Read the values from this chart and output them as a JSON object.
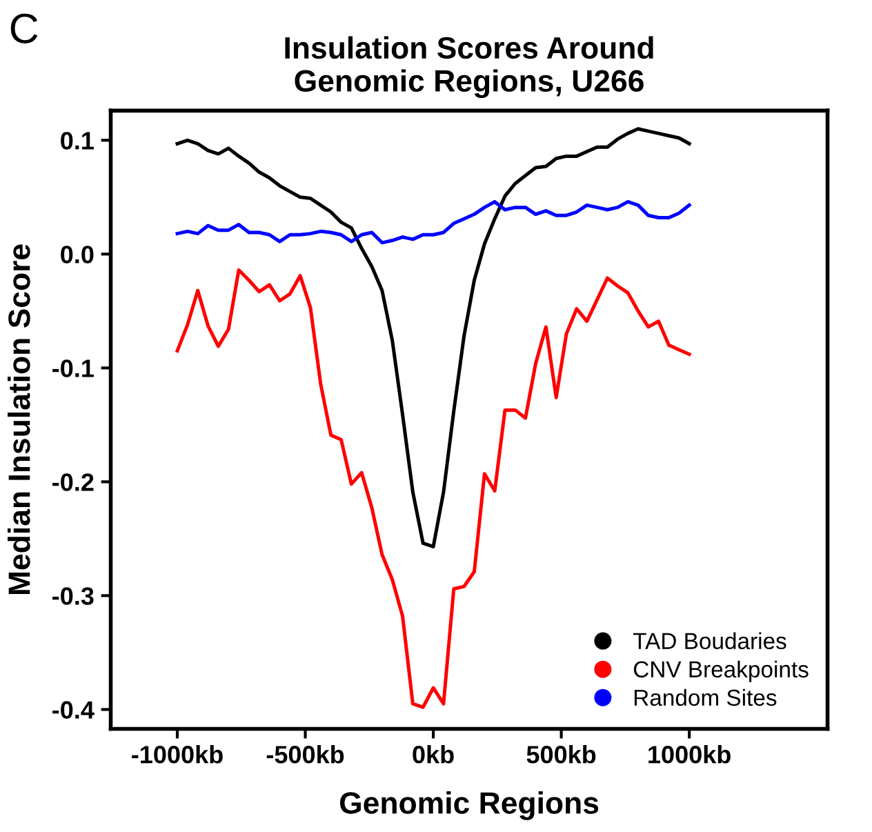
{
  "chart_data": {
    "type": "line",
    "title": "Insulation Scores Around\nGenomic Regions, U266",
    "xlabel": "Genomic Regions",
    "ylabel": "Median Insulation Score",
    "annotations": [
      "C"
    ],
    "x": [
      -1000,
      -960,
      -920,
      -880,
      -840,
      -800,
      -760,
      -720,
      -680,
      -640,
      -600,
      -560,
      -520,
      -480,
      -440,
      -400,
      -360,
      -320,
      -280,
      -240,
      -200,
      -160,
      -120,
      -80,
      -40,
      0,
      40,
      80,
      120,
      160,
      200,
      240,
      280,
      320,
      360,
      400,
      440,
      480,
      520,
      560,
      600,
      640,
      680,
      720,
      760,
      800,
      840,
      880,
      920,
      960,
      1000
    ],
    "series": [
      {
        "name": "TAD Boudaries",
        "color": "#000000",
        "values": [
          0.097,
          0.1,
          0.097,
          0.091,
          0.088,
          0.093,
          0.086,
          0.08,
          0.072,
          0.067,
          0.06,
          0.055,
          0.05,
          0.049,
          0.043,
          0.037,
          0.028,
          0.023,
          0.005,
          -0.011,
          -0.032,
          -0.076,
          -0.141,
          -0.209,
          -0.254,
          -0.257,
          -0.209,
          -0.138,
          -0.072,
          -0.023,
          0.009,
          0.031,
          0.051,
          0.062,
          0.069,
          0.076,
          0.077,
          0.084,
          0.086,
          0.086,
          0.09,
          0.094,
          0.094,
          0.101,
          0.106,
          0.11,
          0.108,
          0.106,
          0.104,
          0.102,
          0.097
        ]
      },
      {
        "name": "CNV Breakpoints",
        "color": "#ff0000",
        "values": [
          -0.085,
          -0.062,
          -0.032,
          -0.063,
          -0.081,
          -0.066,
          -0.014,
          -0.023,
          -0.033,
          -0.027,
          -0.041,
          -0.035,
          -0.019,
          -0.047,
          -0.114,
          -0.159,
          -0.163,
          -0.202,
          -0.192,
          -0.223,
          -0.264,
          -0.286,
          -0.318,
          -0.395,
          -0.398,
          -0.381,
          -0.395,
          -0.294,
          -0.292,
          -0.279,
          -0.193,
          -0.208,
          -0.137,
          -0.137,
          -0.144,
          -0.096,
          -0.064,
          -0.126,
          -0.07,
          -0.048,
          -0.059,
          -0.04,
          -0.021,
          -0.028,
          -0.034,
          -0.05,
          -0.064,
          -0.059,
          -0.08,
          -0.084,
          -0.088
        ]
      },
      {
        "name": "Random Sites",
        "color": "#0000ff",
        "values": [
          0.018,
          0.02,
          0.018,
          0.025,
          0.021,
          0.021,
          0.026,
          0.019,
          0.019,
          0.017,
          0.011,
          0.017,
          0.017,
          0.018,
          0.02,
          0.019,
          0.017,
          0.011,
          0.017,
          0.019,
          0.01,
          0.012,
          0.015,
          0.013,
          0.017,
          0.017,
          0.019,
          0.027,
          0.031,
          0.035,
          0.041,
          0.046,
          0.039,
          0.041,
          0.041,
          0.035,
          0.038,
          0.034,
          0.034,
          0.037,
          0.043,
          0.041,
          0.039,
          0.041,
          0.046,
          0.043,
          0.034,
          0.032,
          0.032,
          0.036,
          0.043
        ]
      }
    ],
    "xlim": [
      -1260,
      1540
    ],
    "ylim": [
      -0.417,
      0.126
    ],
    "xticks": [
      {
        "value": -1000,
        "label": "-1000kb"
      },
      {
        "value": -500,
        "label": "-500kb"
      },
      {
        "value": 0,
        "label": "0kb"
      },
      {
        "value": 500,
        "label": "500kb"
      },
      {
        "value": 1000,
        "label": "1000kb"
      }
    ],
    "yticks": [
      {
        "value": 0.1,
        "label": "0.1"
      },
      {
        "value": 0.0,
        "label": "0.0"
      },
      {
        "value": -0.1,
        "label": "-0.1"
      },
      {
        "value": -0.2,
        "label": "-0.2"
      },
      {
        "value": -0.3,
        "label": "-0.3"
      },
      {
        "value": -0.4,
        "label": "-0.4"
      }
    ],
    "grid": false,
    "legend": "bottom right",
    "marker": "none",
    "line_style": "solid"
  }
}
